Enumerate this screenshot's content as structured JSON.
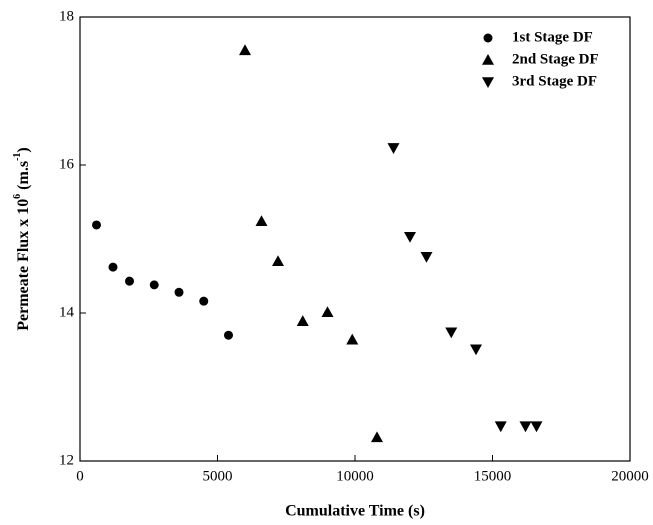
{
  "chart_data": {
    "type": "scatter",
    "xlabel": "Cumulative Time (s)",
    "ylabel_parts": [
      "Permeate Flux x 10",
      "6",
      " (m.s",
      "-1",
      ")"
    ],
    "xlim": [
      0,
      20000
    ],
    "xticks": [
      0,
      5000,
      10000,
      15000,
      20000
    ],
    "ylim": [
      12,
      18
    ],
    "yticks": [
      12,
      14,
      16,
      18
    ],
    "legend": "upper right",
    "series": [
      {
        "name": "1st Stage DF",
        "color": "#000000",
        "marker": "circle",
        "x": [
          600,
          1200,
          1800,
          2700,
          3600,
          4500,
          5400
        ],
        "y": [
          15.19,
          14.62,
          14.43,
          14.38,
          14.28,
          14.16,
          13.7
        ]
      },
      {
        "name": "2nd Stage DF",
        "color": "#000000",
        "marker": "triangle-up",
        "x": [
          6000,
          6600,
          7200,
          8100,
          9000,
          9900,
          10800
        ],
        "y": [
          17.55,
          15.24,
          14.7,
          13.89,
          14.01,
          13.64,
          12.32
        ]
      },
      {
        "name": "3rd Stage DF",
        "color": "#000000",
        "marker": "triangle-down",
        "x": [
          11400,
          12000,
          12600,
          13500,
          14400,
          15300,
          16200,
          16600
        ],
        "y": [
          16.23,
          15.03,
          14.76,
          13.74,
          13.51,
          12.47,
          12.47,
          12.47
        ]
      }
    ]
  }
}
